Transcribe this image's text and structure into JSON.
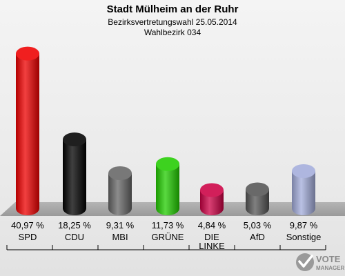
{
  "chart_data": {
    "type": "bar",
    "title": "Stadt Mülheim an der Ruhr",
    "subtitle": "Bezirksvertretungswahl 25.05.2014",
    "subtitle2": "Wahlbezirk 034",
    "categories": [
      "SPD",
      "CDU",
      "MBI",
      "GRÜNE",
      "DIE LINKE",
      "AfD",
      "Sonstige"
    ],
    "values": [
      40.97,
      18.25,
      9.31,
      11.73,
      4.84,
      5.03,
      9.87
    ],
    "value_labels": [
      "40,97 %",
      "18,25 %",
      "9,31 %",
      "11,73 %",
      "4,84 %",
      "5,03 %",
      "9,87 %"
    ],
    "colors": [
      "#ee0000",
      "#000000",
      "#666666",
      "#22cc00",
      "#cc0044",
      "#555555",
      "#a3acdb"
    ],
    "ylim": [
      0,
      42
    ],
    "grid": false,
    "legend": "none"
  },
  "branding": {
    "logo_line1": "VOTE",
    "logo_line2": "MANAGER",
    "logo_icon": "vote-manager-check-icon"
  }
}
